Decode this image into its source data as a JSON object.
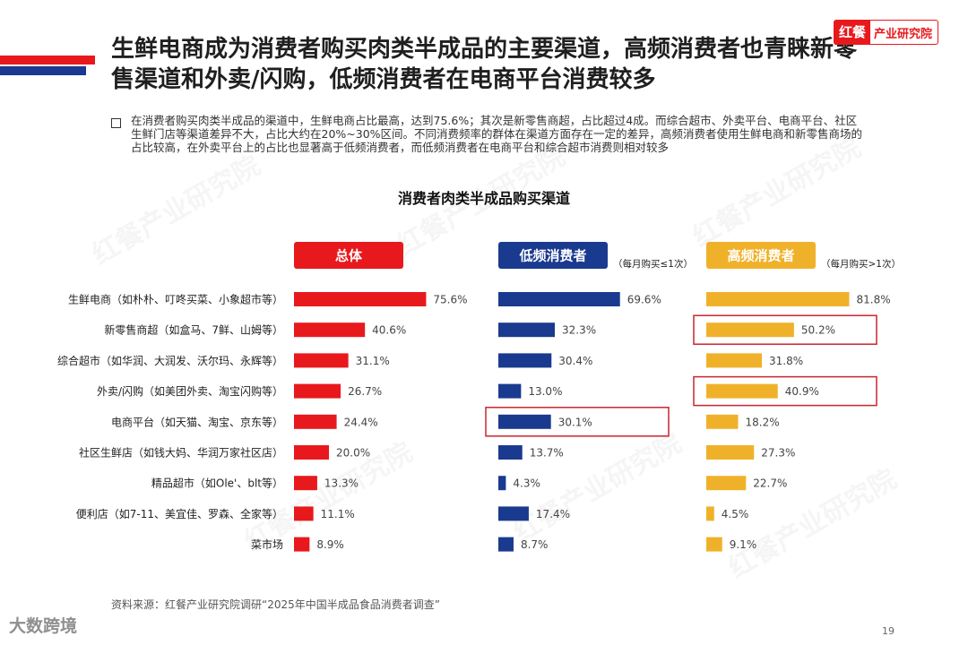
{
  "header": {
    "title": "生鲜电商成为消费者购买肉类半成品的主要渠道，高频消费者也青睐新零售渠道和外卖/闪购，低频消费者在电商平台消费较多",
    "logo_mark": "红餐",
    "logo_text": "产业研究院"
  },
  "summary": "在消费者购买肉类半成品的渠道中，生鲜电商占比最高，达到75.6%；其次是新零售商超，占比超过4成。而综合超市、外卖平台、电商平台、社区生鲜门店等渠道差异不大，占比大约在20%~30%区间。不同消费频率的群体在渠道方面存在一定的差异，高频消费者使用生鲜电商和新零售商场的占比较高，在外卖平台上的占比也显著高于低频消费者，而低频消费者在电商平台和综合超市消费则相对较多",
  "chart_data": {
    "type": "bar",
    "orientation": "horizontal",
    "title": "消费者肉类半成品购买渠道",
    "categories": [
      "生鲜电商（如朴朴、叮咚买菜、小象超市等）",
      "新零售商超（如盒马、7鲜、山姆等）",
      "综合超市（如华润、大润发、沃尔玛、永辉等）",
      "外卖/闪购（如美团外卖、淘宝闪购等）",
      "电商平台（如天猫、淘宝、京东等）",
      "社区生鲜店（如钱大妈、华润万家社区店）",
      "精品超市（如Ole'、blt等）",
      "便利店（如7-11、美宜佳、罗森、全家等）",
      "菜市场"
    ],
    "unit": "%",
    "series": [
      {
        "name": "总体",
        "note": "",
        "color": "#e8191d",
        "values": [
          75.6,
          40.6,
          31.1,
          26.7,
          24.4,
          20.0,
          13.3,
          11.1,
          8.9
        ]
      },
      {
        "name": "低频消费者",
        "note": "（每月购买≤1次）",
        "color": "#1a3a8f",
        "values": [
          69.6,
          32.3,
          30.4,
          13.0,
          30.1,
          13.7,
          4.3,
          17.4,
          8.7
        ]
      },
      {
        "name": "高频消费者",
        "note": "（每月购买>1次）",
        "color": "#f0b12a",
        "values": [
          81.8,
          50.2,
          31.8,
          40.9,
          18.2,
          27.3,
          22.7,
          4.5,
          9.1
        ]
      }
    ],
    "highlight_color": "#c8262d",
    "highlights": [
      {
        "series": 1,
        "category": 4
      },
      {
        "series": 2,
        "category": 1
      },
      {
        "series": 2,
        "category": 3
      }
    ]
  },
  "source": "资料来源：红餐产业研究院调研“2025年中国半成品食品消费者调查”",
  "page_number": "19",
  "watermarks": {
    "brand": "红餐产业研究院",
    "footer": "大数跨境"
  }
}
